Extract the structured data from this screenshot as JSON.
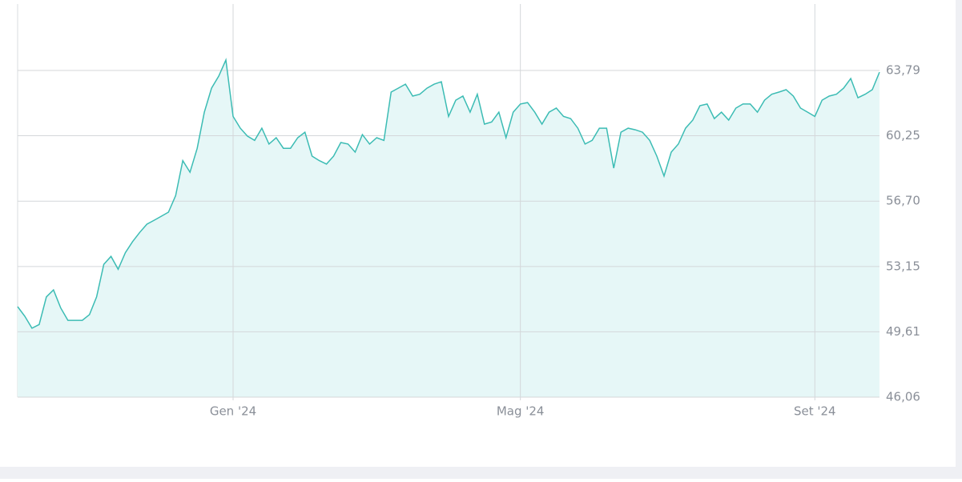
{
  "chart_data": {
    "type": "area",
    "categories": [
      null,
      null,
      null,
      null,
      null,
      null,
      null,
      null,
      null,
      null,
      null,
      null,
      null,
      null,
      null,
      null,
      null,
      null,
      null,
      null,
      null,
      null,
      null,
      null,
      null,
      null,
      null,
      null,
      null,
      null,
      "Gen '24",
      null,
      null,
      null,
      null,
      null,
      null,
      null,
      null,
      null,
      null,
      null,
      null,
      null,
      null,
      null,
      null,
      null,
      null,
      null,
      null,
      null,
      null,
      null,
      null,
      null,
      null,
      null,
      null,
      null,
      null,
      null,
      null,
      null,
      null,
      null,
      null,
      null,
      null,
      null,
      "Mag '24",
      null,
      null,
      null,
      null,
      null,
      null,
      null,
      null,
      null,
      null,
      null,
      null,
      null,
      null,
      null,
      null,
      null,
      null,
      null,
      null,
      null,
      null,
      null,
      null,
      null,
      null,
      null,
      null,
      null,
      null,
      null,
      null,
      null,
      null,
      null,
      null,
      null,
      null,
      null,
      null,
      "Set '24",
      null,
      null,
      null,
      null,
      null,
      null,
      null,
      null,
      null
    ],
    "values": [
      50.97,
      50.45,
      49.8,
      50.0,
      51.5,
      51.88,
      50.9,
      50.23,
      50.23,
      50.23,
      50.54,
      51.5,
      53.27,
      53.7,
      53.0,
      53.9,
      54.5,
      55.0,
      55.45,
      55.66,
      55.88,
      56.1,
      57.0,
      58.9,
      58.27,
      59.57,
      61.53,
      62.83,
      63.49,
      64.36,
      61.3,
      60.66,
      60.23,
      60.0,
      60.66,
      59.8,
      60.14,
      59.57,
      59.57,
      60.14,
      60.44,
      59.14,
      58.9,
      58.71,
      59.14,
      59.88,
      59.8,
      59.36,
      60.31,
      59.8,
      60.14,
      60.0,
      62.62,
      62.83,
      63.05,
      62.4,
      62.5,
      62.83,
      63.05,
      63.18,
      61.3,
      62.18,
      62.4,
      61.53,
      62.5,
      60.88,
      61.0,
      61.53,
      60.14,
      61.53,
      61.97,
      62.05,
      61.53,
      60.88,
      61.53,
      61.75,
      61.3,
      61.18,
      60.66,
      59.8,
      60.0,
      60.66,
      60.66,
      58.49,
      60.44,
      60.66,
      60.57,
      60.44,
      60.0,
      59.14,
      58.06,
      59.36,
      59.8,
      60.66,
      61.1,
      61.88,
      61.97,
      61.18,
      61.53,
      61.1,
      61.75,
      61.97,
      61.97,
      61.53,
      62.18,
      62.5,
      62.62,
      62.75,
      62.4,
      61.75,
      61.53,
      61.3,
      62.18,
      62.4,
      62.5,
      62.83,
      63.36,
      62.31,
      62.5,
      62.75,
      63.7
    ],
    "color": "#3cbcb4",
    "fill_color": "#e6f7f7",
    "ylim": [
      46.06,
      67.4
    ],
    "yticks": [
      {
        "value": 46.06,
        "label": "46,06"
      },
      {
        "value": 49.61,
        "label": "49,61"
      },
      {
        "value": 53.15,
        "label": "53,15"
      },
      {
        "value": 56.7,
        "label": "56,70"
      },
      {
        "value": 60.25,
        "label": "60,25"
      },
      {
        "value": 63.79,
        "label": "63,79"
      }
    ],
    "grid": true
  }
}
